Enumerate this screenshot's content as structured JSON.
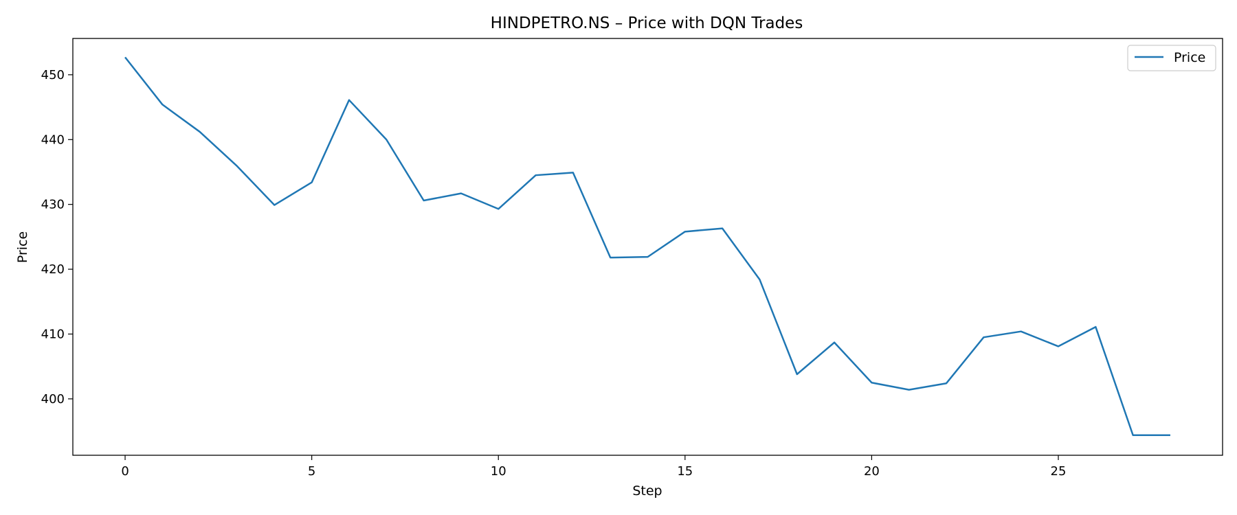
{
  "chart_data": {
    "type": "line",
    "title": "HINDPETRO.NS – Price with DQN Trades",
    "xlabel": "Step",
    "ylabel": "Price",
    "xlim": [
      -1.4,
      29.4
    ],
    "ylim": [
      391.3,
      455.6
    ],
    "xticks": [
      0,
      5,
      10,
      15,
      20,
      25
    ],
    "yticks": [
      400,
      410,
      420,
      430,
      440,
      450
    ],
    "grid": false,
    "legend_position": "top-right",
    "series": [
      {
        "name": "Price",
        "color": "#1f77b4",
        "x": [
          0,
          1,
          2,
          3,
          4,
          5,
          6,
          7,
          8,
          9,
          10,
          11,
          12,
          13,
          14,
          15,
          16,
          17,
          18,
          19,
          20,
          21,
          22,
          23,
          24,
          25,
          26,
          27,
          28
        ],
        "y": [
          452.7,
          445.4,
          441.2,
          435.9,
          429.9,
          433.4,
          446.1,
          440.0,
          430.6,
          431.7,
          429.3,
          434.5,
          434.9,
          421.8,
          421.9,
          425.8,
          426.3,
          418.4,
          403.8,
          408.7,
          402.5,
          401.4,
          402.4,
          409.5,
          410.4,
          408.1,
          411.1,
          394.4,
          394.4
        ]
      }
    ]
  }
}
